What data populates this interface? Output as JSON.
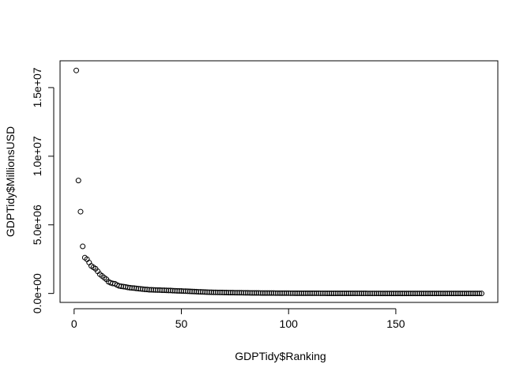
{
  "chart_data": {
    "type": "scatter",
    "title": "",
    "xlabel": "GDPTidy$Ranking",
    "ylabel": "GDPTidy$MillionsUSD",
    "xlim": [
      1,
      190
    ],
    "ylim": [
      0,
      16300000
    ],
    "x_ticks": [
      0,
      50,
      100,
      150
    ],
    "x_tick_labels": [
      "0",
      "50",
      "100",
      "150"
    ],
    "y_ticks": [
      0,
      5000000,
      10000000,
      15000000
    ],
    "y_tick_labels": [
      "0.0e+00",
      "5.0e+06",
      "1.0e+07",
      "1.5e+07"
    ],
    "grid": false,
    "legend": "none",
    "point_style": "open-circle",
    "series": [
      {
        "x": [
          1,
          2,
          3,
          4,
          5,
          6,
          7,
          8,
          9,
          10,
          11,
          12,
          13,
          14,
          15,
          16,
          17,
          18,
          19,
          20,
          21,
          22,
          23,
          24,
          25,
          26,
          27,
          28,
          29,
          30,
          31,
          32,
          33,
          34,
          35,
          36,
          37,
          38,
          39,
          40,
          41,
          42,
          43,
          44,
          45,
          46,
          47,
          48,
          49,
          50,
          51,
          52,
          53,
          54,
          55,
          56,
          57,
          58,
          59,
          60,
          61,
          62,
          63,
          64,
          65,
          66,
          67,
          68,
          69,
          70,
          71,
          72,
          73,
          74,
          75,
          76,
          77,
          78,
          79,
          80,
          81,
          82,
          83,
          84,
          85,
          86,
          87,
          88,
          89,
          90,
          91,
          92,
          93,
          94,
          95,
          96,
          97,
          98,
          99,
          100,
          101,
          102,
          103,
          104,
          105,
          106,
          107,
          108,
          109,
          110,
          111,
          112,
          113,
          114,
          115,
          116,
          117,
          118,
          119,
          120,
          121,
          122,
          123,
          124,
          125,
          126,
          127,
          128,
          129,
          130,
          131,
          132,
          133,
          134,
          135,
          136,
          137,
          138,
          139,
          140,
          141,
          142,
          143,
          144,
          145,
          146,
          147,
          148,
          149,
          150,
          151,
          152,
          153,
          154,
          155,
          156,
          157,
          158,
          159,
          160,
          161,
          162,
          163,
          164,
          165,
          166,
          167,
          168,
          169,
          170,
          171,
          172,
          173,
          174,
          175,
          176,
          177,
          178,
          179,
          180,
          181,
          182,
          183,
          184,
          185,
          186,
          187,
          188,
          189,
          190
        ],
        "y": [
          16250000,
          8230000,
          5960000,
          3430000,
          2610000,
          2490000,
          2250000,
          2010000,
          1900000,
          1800000,
          1610000,
          1400000,
          1280000,
          1150000,
          1040000,
          860000,
          780000,
          730000,
          710000,
          620000,
          550000,
          520000,
          500000,
          480000,
          440000,
          420000,
          400000,
          390000,
          370000,
          350000,
          330000,
          320000,
          300000,
          290000,
          270000,
          265000,
          260000,
          255000,
          250000,
          245000,
          235000,
          230000,
          225000,
          220000,
          215000,
          205000,
          200000,
          190000,
          185000,
          180000,
          170000,
          165000,
          160000,
          150000,
          145000,
          140000,
          130000,
          120000,
          115000,
          110000,
          100000,
          95000,
          92000,
          88000,
          84000,
          80000,
          77000,
          74000,
          71000,
          68000,
          65000,
          62000,
          60000,
          58000,
          56000,
          54000,
          52000,
          50000,
          48000,
          46000,
          44000,
          42000,
          40000,
          38000,
          36000,
          35000,
          34000,
          33000,
          32000,
          31000,
          30000,
          29000,
          28000,
          27000,
          26000,
          25000,
          24000,
          23000,
          22000,
          21000,
          20000,
          19500,
          19000,
          18500,
          18000,
          17500,
          17000,
          16500,
          16000,
          15500,
          15000,
          14500,
          14000,
          13500,
          13000,
          12500,
          12000,
          11500,
          11000,
          10500,
          10000,
          9700,
          9400,
          9100,
          8800,
          8500,
          8200,
          7900,
          7600,
          7300,
          7000,
          6800,
          6600,
          6400,
          6200,
          6000,
          5800,
          5600,
          5400,
          5200,
          5000,
          4800,
          4600,
          4400,
          4200,
          4000,
          3800,
          3600,
          3400,
          3200,
          3000,
          2900,
          2800,
          2700,
          2600,
          2500,
          2400,
          2300,
          2200,
          2100,
          2000,
          1900,
          1800,
          1700,
          1600,
          1500,
          1400,
          1300,
          1200,
          1100,
          1000,
          950,
          900,
          850,
          800,
          750,
          700,
          650,
          600,
          550,
          500,
          450,
          400,
          350,
          300,
          250,
          200,
          150,
          100,
          50
        ]
      }
    ]
  }
}
